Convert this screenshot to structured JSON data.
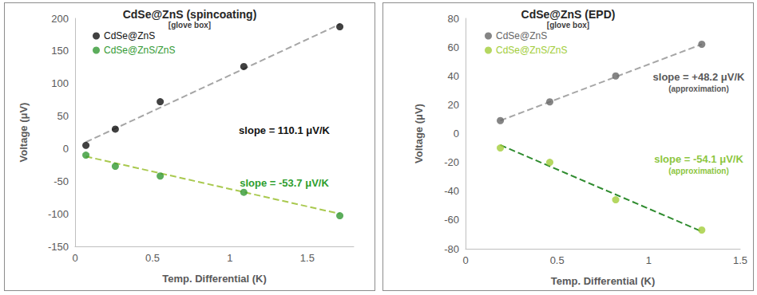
{
  "chart_data": [
    {
      "type": "scatter",
      "title": "CdSe@ZnS (spincoating)",
      "subtitle": "[glove box]",
      "x_label": "Temp. Differential (K)",
      "y_label": "Voltage (μV)",
      "xlim": [
        0,
        1.8
      ],
      "xticks": [
        0,
        0.5,
        1,
        1.5
      ],
      "ylim": [
        -150,
        200
      ],
      "yticks": [
        -150,
        -100,
        -50,
        0,
        50,
        100,
        150,
        200
      ],
      "grid": false,
      "legend": "upper left",
      "series": [
        {
          "type": "line",
          "color": "#a6a6a6",
          "line_style": "dashed",
          "x": [
            0.07,
            1.71
          ],
          "values": [
            10,
            191
          ]
        },
        {
          "type": "line",
          "color": "#a9c94f",
          "line_style": "dashed",
          "x": [
            0.07,
            1.71
          ],
          "values": [
            -12,
            -100
          ]
        },
        {
          "type": "scatter",
          "name": "CdSe@ZnS",
          "color": "#111111",
          "marker": "circle",
          "x": [
            0.07,
            0.26,
            0.55,
            1.09,
            1.71
          ],
          "values": [
            5,
            30,
            72,
            126,
            187
          ]
        },
        {
          "type": "scatter",
          "name": "CdSe@ZnS/ZnS",
          "color": "#339933",
          "marker": "circle",
          "x": [
            0.07,
            0.26,
            0.55,
            1.09,
            1.71
          ],
          "values": [
            -10,
            -27,
            -42,
            -67,
            -103
          ]
        }
      ],
      "annotations": [
        {
          "text": "slope = 110.1 μV/K",
          "color": "#111111"
        },
        {
          "text": "slope = -53.7 μV/K",
          "color": "#2e9e2e"
        }
      ]
    },
    {
      "type": "scatter",
      "title": "CdSe@ZnS (EPD)",
      "subtitle": "[glove box]",
      "x_label": "Temp. Differential (K)",
      "y_label": "Voltage (μV)",
      "xlim": [
        0,
        1.5
      ],
      "xticks": [
        0,
        0.5,
        1,
        1.5
      ],
      "ylim": [
        -80,
        80
      ],
      "yticks": [
        -80,
        -60,
        -40,
        -20,
        0,
        20,
        40,
        60,
        80
      ],
      "grid": false,
      "legend": "upper left",
      "series": [
        {
          "type": "line",
          "color": "#a6a6a6",
          "line_style": "dashed",
          "x": [
            0.19,
            1.29
          ],
          "values": [
            9,
            62
          ]
        },
        {
          "type": "line",
          "color": "#2e8b2e",
          "line_style": "dashed",
          "x": [
            0.19,
            1.29
          ],
          "values": [
            -8,
            -68
          ]
        },
        {
          "type": "scatter",
          "name": "CdSe@ZnS",
          "color": "#666666",
          "marker": "circle",
          "x": [
            0.19,
            0.46,
            0.82,
            1.29
          ],
          "values": [
            9,
            22,
            40,
            62
          ]
        },
        {
          "type": "scatter",
          "name": "CdSe@ZnS/ZnS",
          "color": "#a2cd3a",
          "marker": "circle",
          "x": [
            0.19,
            0.46,
            0.82,
            1.29
          ],
          "values": [
            -10,
            -20,
            -46,
            -67
          ]
        }
      ],
      "annotations": [
        {
          "text": "slope = +48.2 μV/K",
          "subtext": "(approximation)",
          "color": "#595959"
        },
        {
          "text": "slope = -54.1 μV/K",
          "subtext": "(approximation)",
          "color": "#8dc63f"
        }
      ]
    }
  ]
}
